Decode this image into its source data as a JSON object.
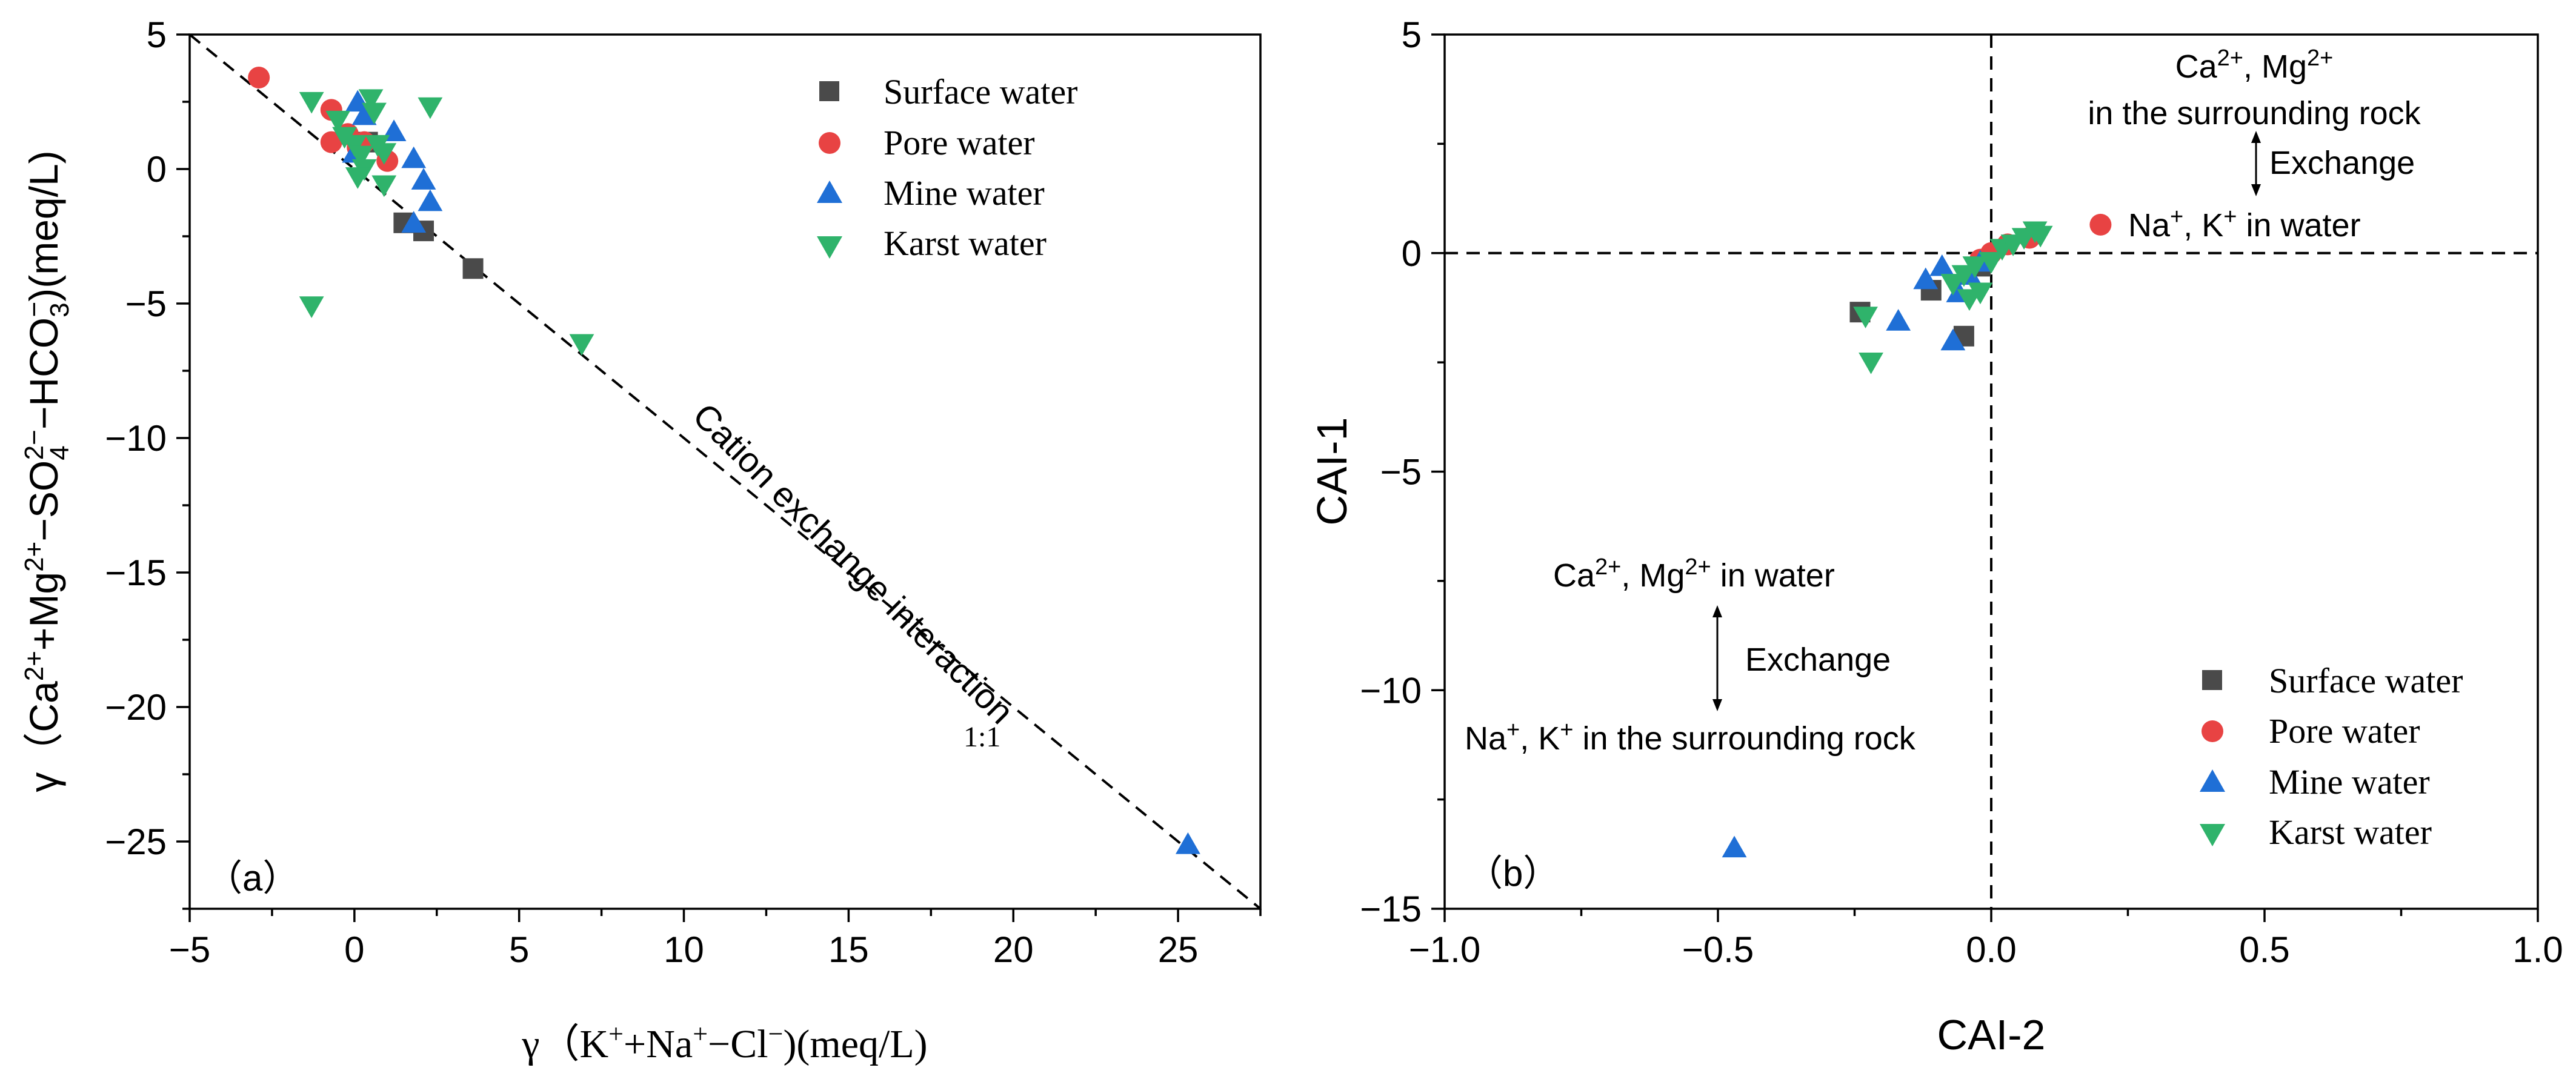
{
  "chart_data": [
    {
      "type": "scatter",
      "panel_label": "（a）",
      "xlabel": {
        "pre": "γ（K",
        "s1": "+",
        "mid": "+Na",
        "s2": "+",
        "mid2": "−Cl",
        "s3": "−",
        "post": ")(meq/L)"
      },
      "ylabel": {
        "a": "γ（Ca",
        "b": "2+",
        "c": "+Mg",
        "d": "2+",
        "e": "−SO",
        "f": "4",
        "g": "2−",
        "h": "−HCO",
        "i": "3",
        "j": "−",
        "k": ")(meq/L)"
      },
      "xlim": [
        -5,
        27.5
      ],
      "ylim": [
        -27.5,
        5
      ],
      "xticks": [
        -5,
        0,
        5,
        10,
        15,
        20,
        25
      ],
      "xtick_labels": [
        "−5",
        "0",
        "5",
        "10",
        "15",
        "20",
        "25"
      ],
      "yticks": [
        5,
        0,
        -5,
        -10,
        -15,
        -20,
        -25
      ],
      "ytick_labels": [
        "5",
        "0",
        "−5",
        "−10",
        "−15",
        "−20",
        "−25"
      ],
      "reference_line": {
        "slope": -1,
        "intercept": 0,
        "label": "Cation exchange interaction",
        "ratio_label": "1:1"
      },
      "legend": [
        "Surface water",
        "Pore water",
        "Mine water",
        "Karst water"
      ],
      "series": [
        {
          "name": "Surface water",
          "marker": "square",
          "color": "#4a4a4a",
          "points": [
            [
              1.5,
              -2.0
            ],
            [
              2.1,
              -2.3
            ],
            [
              3.6,
              -3.7
            ],
            [
              0.4,
              1.0
            ]
          ]
        },
        {
          "name": "Pore water",
          "marker": "circle",
          "color": "#e84343",
          "points": [
            [
              -2.9,
              3.4
            ],
            [
              -0.7,
              2.2
            ],
            [
              -0.7,
              1.0
            ],
            [
              -0.2,
              1.3
            ],
            [
              0.1,
              0.8
            ],
            [
              0.3,
              1.0
            ],
            [
              1.0,
              0.3
            ]
          ]
        },
        {
          "name": "Mine water",
          "marker": "triangle-up",
          "color": "#1f6fd6",
          "points": [
            [
              0.1,
              2.5
            ],
            [
              0.3,
              2.0
            ],
            [
              1.2,
              1.4
            ],
            [
              1.8,
              0.4
            ],
            [
              2.1,
              -0.4
            ],
            [
              2.3,
              -1.2
            ],
            [
              1.8,
              -2.0
            ],
            [
              25.3,
              -25.1
            ],
            [
              0.0,
              0.6
            ]
          ]
        },
        {
          "name": "Karst water",
          "marker": "triangle-down",
          "color": "#2fb36b",
          "points": [
            [
              -1.3,
              2.5
            ],
            [
              -0.5,
              1.8
            ],
            [
              -0.3,
              1.2
            ],
            [
              0.0,
              0.9
            ],
            [
              0.2,
              0.5
            ],
            [
              0.3,
              0.0
            ],
            [
              0.5,
              2.6
            ],
            [
              0.6,
              2.1
            ],
            [
              0.7,
              0.9
            ],
            [
              0.9,
              0.6
            ],
            [
              0.9,
              -0.6
            ],
            [
              2.3,
              2.3
            ],
            [
              -1.3,
              -5.1
            ],
            [
              6.9,
              -6.5
            ],
            [
              0.1,
              -0.3
            ]
          ]
        }
      ]
    },
    {
      "type": "scatter",
      "panel_label": "（b）",
      "xlabel": "CAI-2",
      "ylabel": "CAI-1",
      "xlim": [
        -1.0,
        1.0
      ],
      "ylim": [
        -15,
        5
      ],
      "xticks": [
        -1.0,
        -0.5,
        0.0,
        0.5,
        1.0
      ],
      "xtick_labels": [
        "−1.0",
        "−0.5",
        "0.0",
        "0.5",
        "1.0"
      ],
      "yticks": [
        5,
        0,
        -5,
        -10,
        -15
      ],
      "ytick_labels": [
        "5",
        "0",
        "−5",
        "−10",
        "−15"
      ],
      "reference_lines": {
        "x": 0,
        "y": 0
      },
      "annotations": {
        "top_right": {
          "l1a": "Ca",
          "l1b": "2+",
          "l1c": ", Mg",
          "l1d": "2+",
          "l2": "in the surrounding rock",
          "exchange": "Exchange",
          "l3a": "Na",
          "l3b": "+",
          "l3c": ",  K",
          "l3d": "+",
          "l3e": " in water"
        },
        "bottom_left": {
          "l1a": "Ca",
          "l1b": "2+",
          "l1c": ", Mg",
          "l1d": "2+",
          "l1e": " in water",
          "exchange": "Exchange",
          "l3a": "Na",
          "l3b": "+",
          "l3c": ",  K",
          "l3d": "+",
          "l3e": " in the surrounding rock"
        }
      },
      "legend": [
        "Surface water",
        "Pore water",
        "Mine water",
        "Karst water"
      ],
      "series": [
        {
          "name": "Surface water",
          "marker": "square",
          "color": "#4a4a4a",
          "points": [
            [
              -0.24,
              -1.35
            ],
            [
              -0.11,
              -0.85
            ],
            [
              -0.05,
              -1.9
            ],
            [
              -0.02,
              -0.3
            ]
          ]
        },
        {
          "name": "Pore water",
          "marker": "circle",
          "color": "#e84343",
          "points": [
            [
              0.2,
              0.65
            ],
            [
              0.07,
              0.35
            ],
            [
              0.03,
              0.2
            ],
            [
              0.0,
              0.0
            ],
            [
              -0.02,
              -0.15
            ]
          ]
        },
        {
          "name": "Mine water",
          "marker": "triangle-up",
          "color": "#1f6fd6",
          "points": [
            [
              -0.47,
              -13.6
            ],
            [
              -0.17,
              -1.55
            ],
            [
              -0.12,
              -0.6
            ],
            [
              -0.09,
              -0.3
            ],
            [
              -0.07,
              -2.0
            ],
            [
              -0.06,
              -0.9
            ],
            [
              -0.04,
              -0.5
            ],
            [
              -0.02,
              -0.2
            ]
          ]
        },
        {
          "name": "Karst water",
          "marker": "triangle-down",
          "color": "#2fb36b",
          "points": [
            [
              -0.23,
              -1.45
            ],
            [
              -0.22,
              -2.5
            ],
            [
              -0.07,
              -0.7
            ],
            [
              -0.05,
              -0.5
            ],
            [
              -0.04,
              -1.05
            ],
            [
              -0.03,
              -0.3
            ],
            [
              -0.02,
              -0.9
            ],
            [
              0.0,
              -0.2
            ],
            [
              0.02,
              0.1
            ],
            [
              0.04,
              0.2
            ],
            [
              0.06,
              0.35
            ],
            [
              0.08,
              0.5
            ],
            [
              0.09,
              0.4
            ]
          ]
        }
      ]
    }
  ]
}
